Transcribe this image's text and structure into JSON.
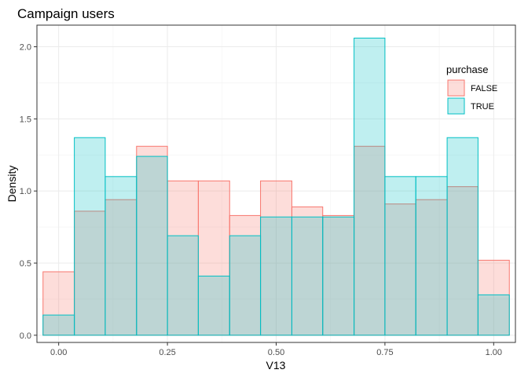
{
  "chart_data": {
    "type": "histogram",
    "title": "Campaign users",
    "xlabel": "V13",
    "ylabel": "Density",
    "xlim": [
      -0.05,
      1.05
    ],
    "ylim": [
      -0.05,
      2.15
    ],
    "x_ticks": [
      0.0,
      0.25,
      0.5,
      0.75,
      1.0
    ],
    "x_tick_labels": [
      "0.00",
      "0.25",
      "0.50",
      "0.75",
      "1.00"
    ],
    "y_ticks": [
      0.0,
      0.5,
      1.0,
      1.5,
      2.0
    ],
    "y_tick_labels": [
      "0.0",
      "0.5",
      "1.0",
      "1.5",
      "2.0"
    ],
    "grid": true,
    "legend_position": "top-right",
    "legend": {
      "title": "purchase",
      "items": [
        {
          "label": "FALSE",
          "fill": "#F8766D",
          "stroke": "#F8766D"
        },
        {
          "label": "TRUE",
          "fill": "#00BFC4",
          "stroke": "#00BFC4"
        }
      ]
    },
    "bin_edges": [
      -0.036,
      0.036,
      0.107,
      0.179,
      0.25,
      0.321,
      0.393,
      0.464,
      0.536,
      0.607,
      0.679,
      0.75,
      0.821,
      0.893,
      0.964,
      1.036
    ],
    "series": [
      {
        "name": "FALSE",
        "color": "#F8766D",
        "values": [
          0.44,
          0.86,
          0.94,
          1.31,
          1.07,
          1.07,
          0.83,
          1.07,
          0.89,
          0.83,
          1.31,
          0.91,
          0.94,
          1.03,
          0.52
        ]
      },
      {
        "name": "TRUE",
        "color": "#00BFC4",
        "values": [
          0.14,
          1.37,
          1.1,
          1.24,
          0.69,
          0.41,
          0.69,
          0.82,
          0.82,
          0.82,
          2.06,
          1.1,
          1.1,
          1.37,
          0.28
        ]
      }
    ]
  }
}
